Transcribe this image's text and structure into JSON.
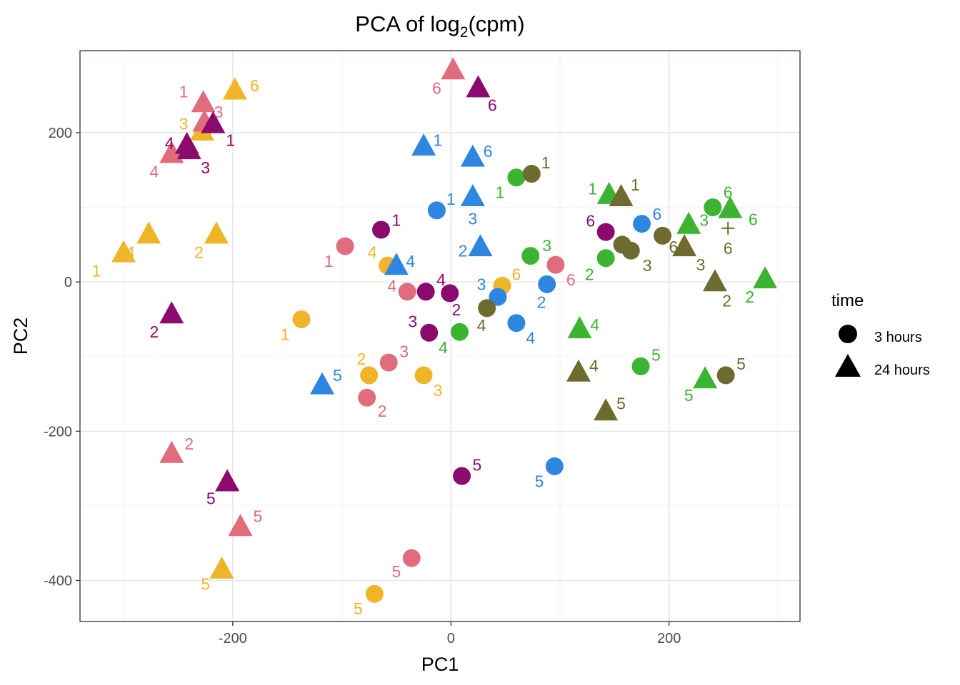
{
  "chart_data": {
    "type": "scatter",
    "title_prefix": "PCA of log",
    "title_sub": "2",
    "title_suffix": "(cpm)",
    "xlabel": "PC1",
    "ylabel": "PC2",
    "xlim": [
      -340,
      320
    ],
    "ylim": [
      -455,
      310
    ],
    "xticks": [
      -200,
      0,
      200
    ],
    "yticks": [
      -400,
      -200,
      0,
      200
    ],
    "xtick_labels": [
      "-200",
      "0",
      "200"
    ],
    "ytick_labels": [
      "-400",
      "-200",
      "0",
      "200"
    ],
    "grid": true,
    "legend": {
      "title": "time",
      "position": "right",
      "entries": [
        {
          "label": "3 hours",
          "shape": "circle"
        },
        {
          "label": "24 hours",
          "shape": "triangle"
        }
      ]
    },
    "colors": {
      "yellow": "#f0b428",
      "pink": "#e06c7c",
      "purple": "#8b0a6e",
      "blue": "#2f86e0",
      "green": "#3cb432",
      "olive": "#6e6b30"
    },
    "points": [
      {
        "x": -300,
        "y": 37,
        "shape": "triangle",
        "color": "yellow",
        "label": "1",
        "lx": -325,
        "ly": 15
      },
      {
        "x": -277,
        "y": 62,
        "shape": "triangle",
        "color": "yellow",
        "label": "4",
        "lx": -294,
        "ly": 40
      },
      {
        "x": -215,
        "y": 62,
        "shape": "triangle",
        "color": "yellow",
        "label": "2",
        "lx": -231,
        "ly": 40
      },
      {
        "x": -198,
        "y": 255,
        "shape": "triangle",
        "color": "yellow",
        "label": "6",
        "lx": -180,
        "ly": 263
      },
      {
        "x": -228,
        "y": 200,
        "shape": "triangle",
        "color": "yellow",
        "label": "3",
        "lx": -245,
        "ly": 212
      },
      {
        "x": -137,
        "y": -50,
        "shape": "circle",
        "color": "yellow",
        "label": "1",
        "lx": -152,
        "ly": -70
      },
      {
        "x": -210,
        "y": -387,
        "shape": "triangle",
        "color": "yellow",
        "label": "5",
        "lx": -225,
        "ly": -405
      },
      {
        "x": -70,
        "y": -418,
        "shape": "circle",
        "color": "yellow",
        "label": "5",
        "lx": -85,
        "ly": -438
      },
      {
        "x": -75,
        "y": -125,
        "shape": "circle",
        "color": "yellow",
        "label": "2",
        "lx": -82,
        "ly": -103
      },
      {
        "x": -25,
        "y": -125,
        "shape": "circle",
        "color": "yellow",
        "label": "3",
        "lx": -12,
        "ly": -145
      },
      {
        "x": -58,
        "y": 22,
        "shape": "circle",
        "color": "yellow",
        "label": "4",
        "lx": -72,
        "ly": 40
      },
      {
        "x": 47,
        "y": -5,
        "shape": "circle",
        "color": "yellow",
        "label": "6",
        "lx": 60,
        "ly": 10
      },
      {
        "x": -227,
        "y": 238,
        "shape": "triangle",
        "color": "pink",
        "label": "1",
        "lx": -245,
        "ly": 255
      },
      {
        "x": -226,
        "y": 212,
        "shape": "triangle",
        "color": "pink",
        "label": "3",
        "lx": -213,
        "ly": 228
      },
      {
        "x": -256,
        "y": 170,
        "shape": "triangle",
        "color": "pink",
        "label": "4",
        "lx": -272,
        "ly": 148
      },
      {
        "x": -256,
        "y": -232,
        "shape": "triangle",
        "color": "pink",
        "label": "2",
        "lx": -240,
        "ly": -217
      },
      {
        "x": -193,
        "y": -330,
        "shape": "triangle",
        "color": "pink",
        "label": "5",
        "lx": -177,
        "ly": -314
      },
      {
        "x": 2,
        "y": 282,
        "shape": "triangle",
        "color": "pink",
        "label": "6",
        "lx": -13,
        "ly": 260
      },
      {
        "x": -97,
        "y": 48,
        "shape": "circle",
        "color": "pink",
        "label": "1",
        "lx": -112,
        "ly": 28
      },
      {
        "x": -40,
        "y": -13,
        "shape": "circle",
        "color": "pink",
        "label": "4",
        "lx": -54,
        "ly": -5
      },
      {
        "x": -57,
        "y": -108,
        "shape": "circle",
        "color": "pink",
        "label": "3",
        "lx": -43,
        "ly": -93
      },
      {
        "x": -77,
        "y": -155,
        "shape": "circle",
        "color": "pink",
        "label": "2",
        "lx": -63,
        "ly": -173
      },
      {
        "x": -36,
        "y": -370,
        "shape": "circle",
        "color": "pink",
        "label": "5",
        "lx": -50,
        "ly": -388
      },
      {
        "x": 96,
        "y": 23,
        "shape": "circle",
        "color": "pink",
        "label": "6",
        "lx": 110,
        "ly": 3
      },
      {
        "x": -218,
        "y": 210,
        "shape": "triangle",
        "color": "purple",
        "label": "1",
        "lx": -202,
        "ly": 190
      },
      {
        "x": -242,
        "y": 182,
        "shape": "triangle",
        "color": "purple",
        "label": "4",
        "lx": -258,
        "ly": 186
      },
      {
        "x": -240,
        "y": 175,
        "shape": "triangle",
        "color": "purple",
        "label": "3",
        "lx": -225,
        "ly": 153
      },
      {
        "x": -256,
        "y": -45,
        "shape": "triangle",
        "color": "purple",
        "label": "2",
        "lx": -272,
        "ly": -67
      },
      {
        "x": -205,
        "y": -270,
        "shape": "triangle",
        "color": "purple",
        "label": "5",
        "lx": -220,
        "ly": -290
      },
      {
        "x": 25,
        "y": 258,
        "shape": "triangle",
        "color": "purple",
        "label": "6",
        "lx": 38,
        "ly": 237
      },
      {
        "x": -64,
        "y": 70,
        "shape": "circle",
        "color": "purple",
        "label": "1",
        "lx": -50,
        "ly": 83
      },
      {
        "x": -23,
        "y": -13,
        "shape": "circle",
        "color": "purple",
        "label": "4",
        "lx": -9,
        "ly": 3
      },
      {
        "x": -1,
        "y": -15,
        "shape": "circle",
        "color": "purple",
        "label": "2",
        "lx": 5,
        "ly": -37
      },
      {
        "x": -20,
        "y": -68,
        "shape": "circle",
        "color": "purple",
        "label": "3",
        "lx": -35,
        "ly": -53
      },
      {
        "x": 10,
        "y": -260,
        "shape": "circle",
        "color": "purple",
        "label": "5",
        "lx": 24,
        "ly": -245
      },
      {
        "x": 142,
        "y": 67,
        "shape": "circle",
        "color": "purple",
        "label": "6",
        "lx": 128,
        "ly": 82
      },
      {
        "x": -25,
        "y": 180,
        "shape": "triangle",
        "color": "blue",
        "label": "1",
        "lx": -12,
        "ly": 190
      },
      {
        "x": 20,
        "y": 165,
        "shape": "triangle",
        "color": "blue",
        "label": "6",
        "lx": 34,
        "ly": 175
      },
      {
        "x": 20,
        "y": 112,
        "shape": "triangle",
        "color": "blue",
        "label": "3",
        "lx": 20,
        "ly": 85
      },
      {
        "x": 27,
        "y": 45,
        "shape": "triangle",
        "color": "blue",
        "label": "2",
        "lx": 11,
        "ly": 42
      },
      {
        "x": -50,
        "y": 20,
        "shape": "triangle",
        "color": "blue",
        "label": "4",
        "lx": -37,
        "ly": 28
      },
      {
        "x": -118,
        "y": -140,
        "shape": "triangle",
        "color": "blue",
        "label": "5",
        "lx": -104,
        "ly": -125
      },
      {
        "x": -13,
        "y": 96,
        "shape": "circle",
        "color": "blue",
        "label": "1",
        "lx": 0,
        "ly": 111
      },
      {
        "x": 43,
        "y": -20,
        "shape": "circle",
        "color": "blue",
        "label": "3",
        "lx": 28,
        "ly": -3
      },
      {
        "x": 88,
        "y": -3,
        "shape": "circle",
        "color": "blue",
        "label": "2",
        "lx": 83,
        "ly": -27
      },
      {
        "x": 60,
        "y": -55,
        "shape": "circle",
        "color": "blue",
        "label": "4",
        "lx": 73,
        "ly": -75
      },
      {
        "x": 95,
        "y": -247,
        "shape": "circle",
        "color": "blue",
        "label": "5",
        "lx": 81,
        "ly": -267
      },
      {
        "x": 175,
        "y": 78,
        "shape": "circle",
        "color": "blue",
        "label": "6",
        "lx": 189,
        "ly": 91
      },
      {
        "x": 60,
        "y": 140,
        "shape": "circle",
        "color": "green",
        "label": "1",
        "lx": 45,
        "ly": 120
      },
      {
        "x": 73,
        "y": 35,
        "shape": "circle",
        "color": "green",
        "label": "3",
        "lx": 88,
        "ly": 49
      },
      {
        "x": 8,
        "y": -67,
        "shape": "circle",
        "color": "green",
        "label": "4",
        "lx": -7,
        "ly": -88
      },
      {
        "x": 142,
        "y": 32,
        "shape": "circle",
        "color": "green",
        "label": "2",
        "lx": 127,
        "ly": 10
      },
      {
        "x": 174,
        "y": -113,
        "shape": "circle",
        "color": "green",
        "label": "5",
        "lx": 188,
        "ly": -98
      },
      {
        "x": 240,
        "y": 100,
        "shape": "circle",
        "color": "green",
        "label": "6",
        "lx": 254,
        "ly": 120
      },
      {
        "x": 145,
        "y": 115,
        "shape": "triangle",
        "color": "green",
        "label": "1",
        "lx": 130,
        "ly": 125
      },
      {
        "x": 218,
        "y": 75,
        "shape": "triangle",
        "color": "green",
        "label": "3",
        "lx": 232,
        "ly": 83
      },
      {
        "x": 118,
        "y": -65,
        "shape": "triangle",
        "color": "green",
        "label": "4",
        "lx": 132,
        "ly": -57
      },
      {
        "x": 233,
        "y": -132,
        "shape": "triangle",
        "color": "green",
        "label": "5",
        "lx": 218,
        "ly": -152
      },
      {
        "x": 256,
        "y": 96,
        "shape": "triangle",
        "color": "green",
        "label": "6",
        "lx": 277,
        "ly": 84
      },
      {
        "x": 288,
        "y": 2,
        "shape": "triangle",
        "color": "green",
        "label": "2",
        "lx": 274,
        "ly": -20
      },
      {
        "x": 74,
        "y": 145,
        "shape": "circle",
        "color": "olive",
        "label": "1",
        "lx": 87,
        "ly": 160
      },
      {
        "x": 33,
        "y": -35,
        "shape": "circle",
        "color": "olive",
        "label": "4",
        "lx": 28,
        "ly": -58
      },
      {
        "x": 157,
        "y": 50,
        "shape": "circle",
        "color": "olive",
        "label": "3",
        "lx": 180,
        "ly": 22
      },
      {
        "x": 165,
        "y": 42,
        "shape": "circle",
        "color": "olive",
        "label": "",
        "lx": 0,
        "ly": 0
      },
      {
        "x": 194,
        "y": 62,
        "shape": "circle",
        "color": "olive",
        "label": "6",
        "lx": 204,
        "ly": 47
      },
      {
        "x": 252,
        "y": -125,
        "shape": "circle",
        "color": "olive",
        "label": "5",
        "lx": 266,
        "ly": -110
      },
      {
        "x": 156,
        "y": 112,
        "shape": "triangle",
        "color": "olive",
        "label": "1",
        "lx": 169,
        "ly": 130
      },
      {
        "x": 214,
        "y": 45,
        "shape": "triangle",
        "color": "olive",
        "label": "3",
        "lx": 229,
        "ly": 23
      },
      {
        "x": 242,
        "y": -2,
        "shape": "triangle",
        "color": "olive",
        "label": "2",
        "lx": 253,
        "ly": -25
      },
      {
        "x": 117,
        "y": -123,
        "shape": "triangle",
        "color": "olive",
        "label": "4",
        "lx": 131,
        "ly": -112
      },
      {
        "x": 142,
        "y": -175,
        "shape": "triangle",
        "color": "olive",
        "label": "5",
        "lx": 156,
        "ly": -163
      },
      {
        "x": 254,
        "y": 72,
        "shape": "cross",
        "color": "olive",
        "label": "6",
        "lx": 254,
        "ly": 45
      }
    ]
  }
}
